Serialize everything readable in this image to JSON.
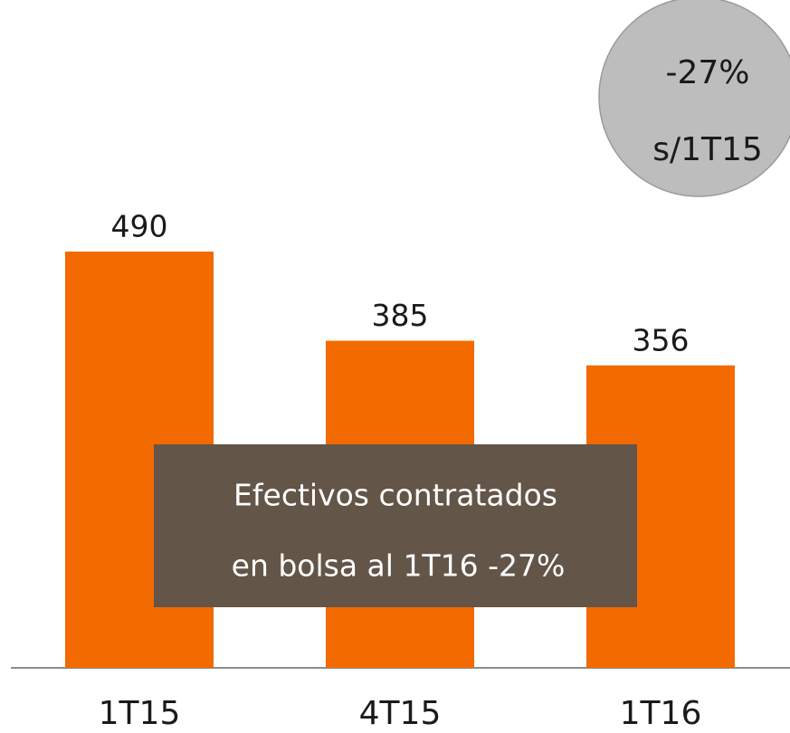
{
  "chart_data": {
    "type": "bar",
    "categories": [
      "1T15",
      "4T15",
      "1T16"
    ],
    "values": [
      490,
      385,
      356
    ],
    "color": "#f26a00",
    "annotations": {
      "circle": [
        "-27%",
        "s/1T15"
      ],
      "box": [
        "Efectivos contratados",
        "en bolsa al 1T16 -27%"
      ]
    }
  }
}
